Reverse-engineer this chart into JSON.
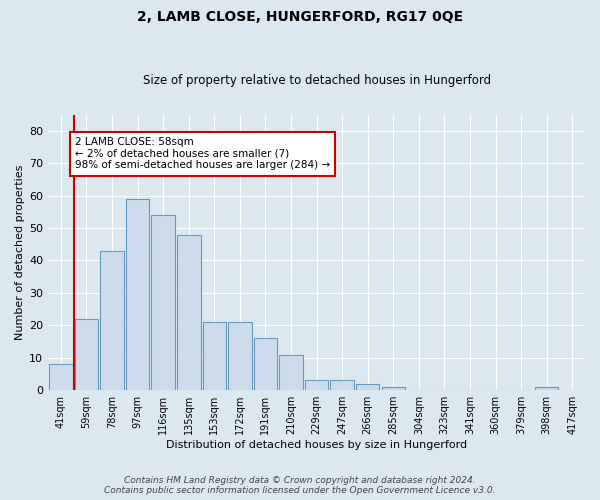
{
  "title": "2, LAMB CLOSE, HUNGERFORD, RG17 0QE",
  "subtitle": "Size of property relative to detached houses in Hungerford",
  "xlabel": "Distribution of detached houses by size in Hungerford",
  "ylabel": "Number of detached properties",
  "bar_values": [
    8,
    22,
    43,
    59,
    54,
    48,
    21,
    21,
    16,
    11,
    3,
    3,
    2,
    1,
    0,
    0,
    0,
    0,
    0,
    1
  ],
  "bar_labels": [
    "41sqm",
    "59sqm",
    "78sqm",
    "97sqm",
    "116sqm",
    "135sqm",
    "153sqm",
    "172sqm",
    "191sqm",
    "210sqm",
    "229sqm",
    "247sqm",
    "266sqm",
    "285sqm",
    "304sqm",
    "323sqm",
    "341sqm",
    "360sqm",
    "379sqm",
    "398sqm",
    "417sqm"
  ],
  "bar_color": "#ccdcec",
  "bar_edge_color": "#6699bb",
  "highlight_color": "#cc0000",
  "annotation_text": "2 LAMB CLOSE: 58sqm\n← 2% of detached houses are smaller (7)\n98% of semi-detached houses are larger (284) →",
  "annotation_box_color": "#ffffff",
  "annotation_box_edge": "#cc0000",
  "ylim": [
    0,
    85
  ],
  "yticks": [
    0,
    10,
    20,
    30,
    40,
    50,
    60,
    70,
    80
  ],
  "footer_line1": "Contains HM Land Registry data © Crown copyright and database right 2024.",
  "footer_line2": "Contains public sector information licensed under the Open Government Licence v3.0.",
  "bg_color": "#dce8f0",
  "plot_bg_color": "#dce8f0"
}
